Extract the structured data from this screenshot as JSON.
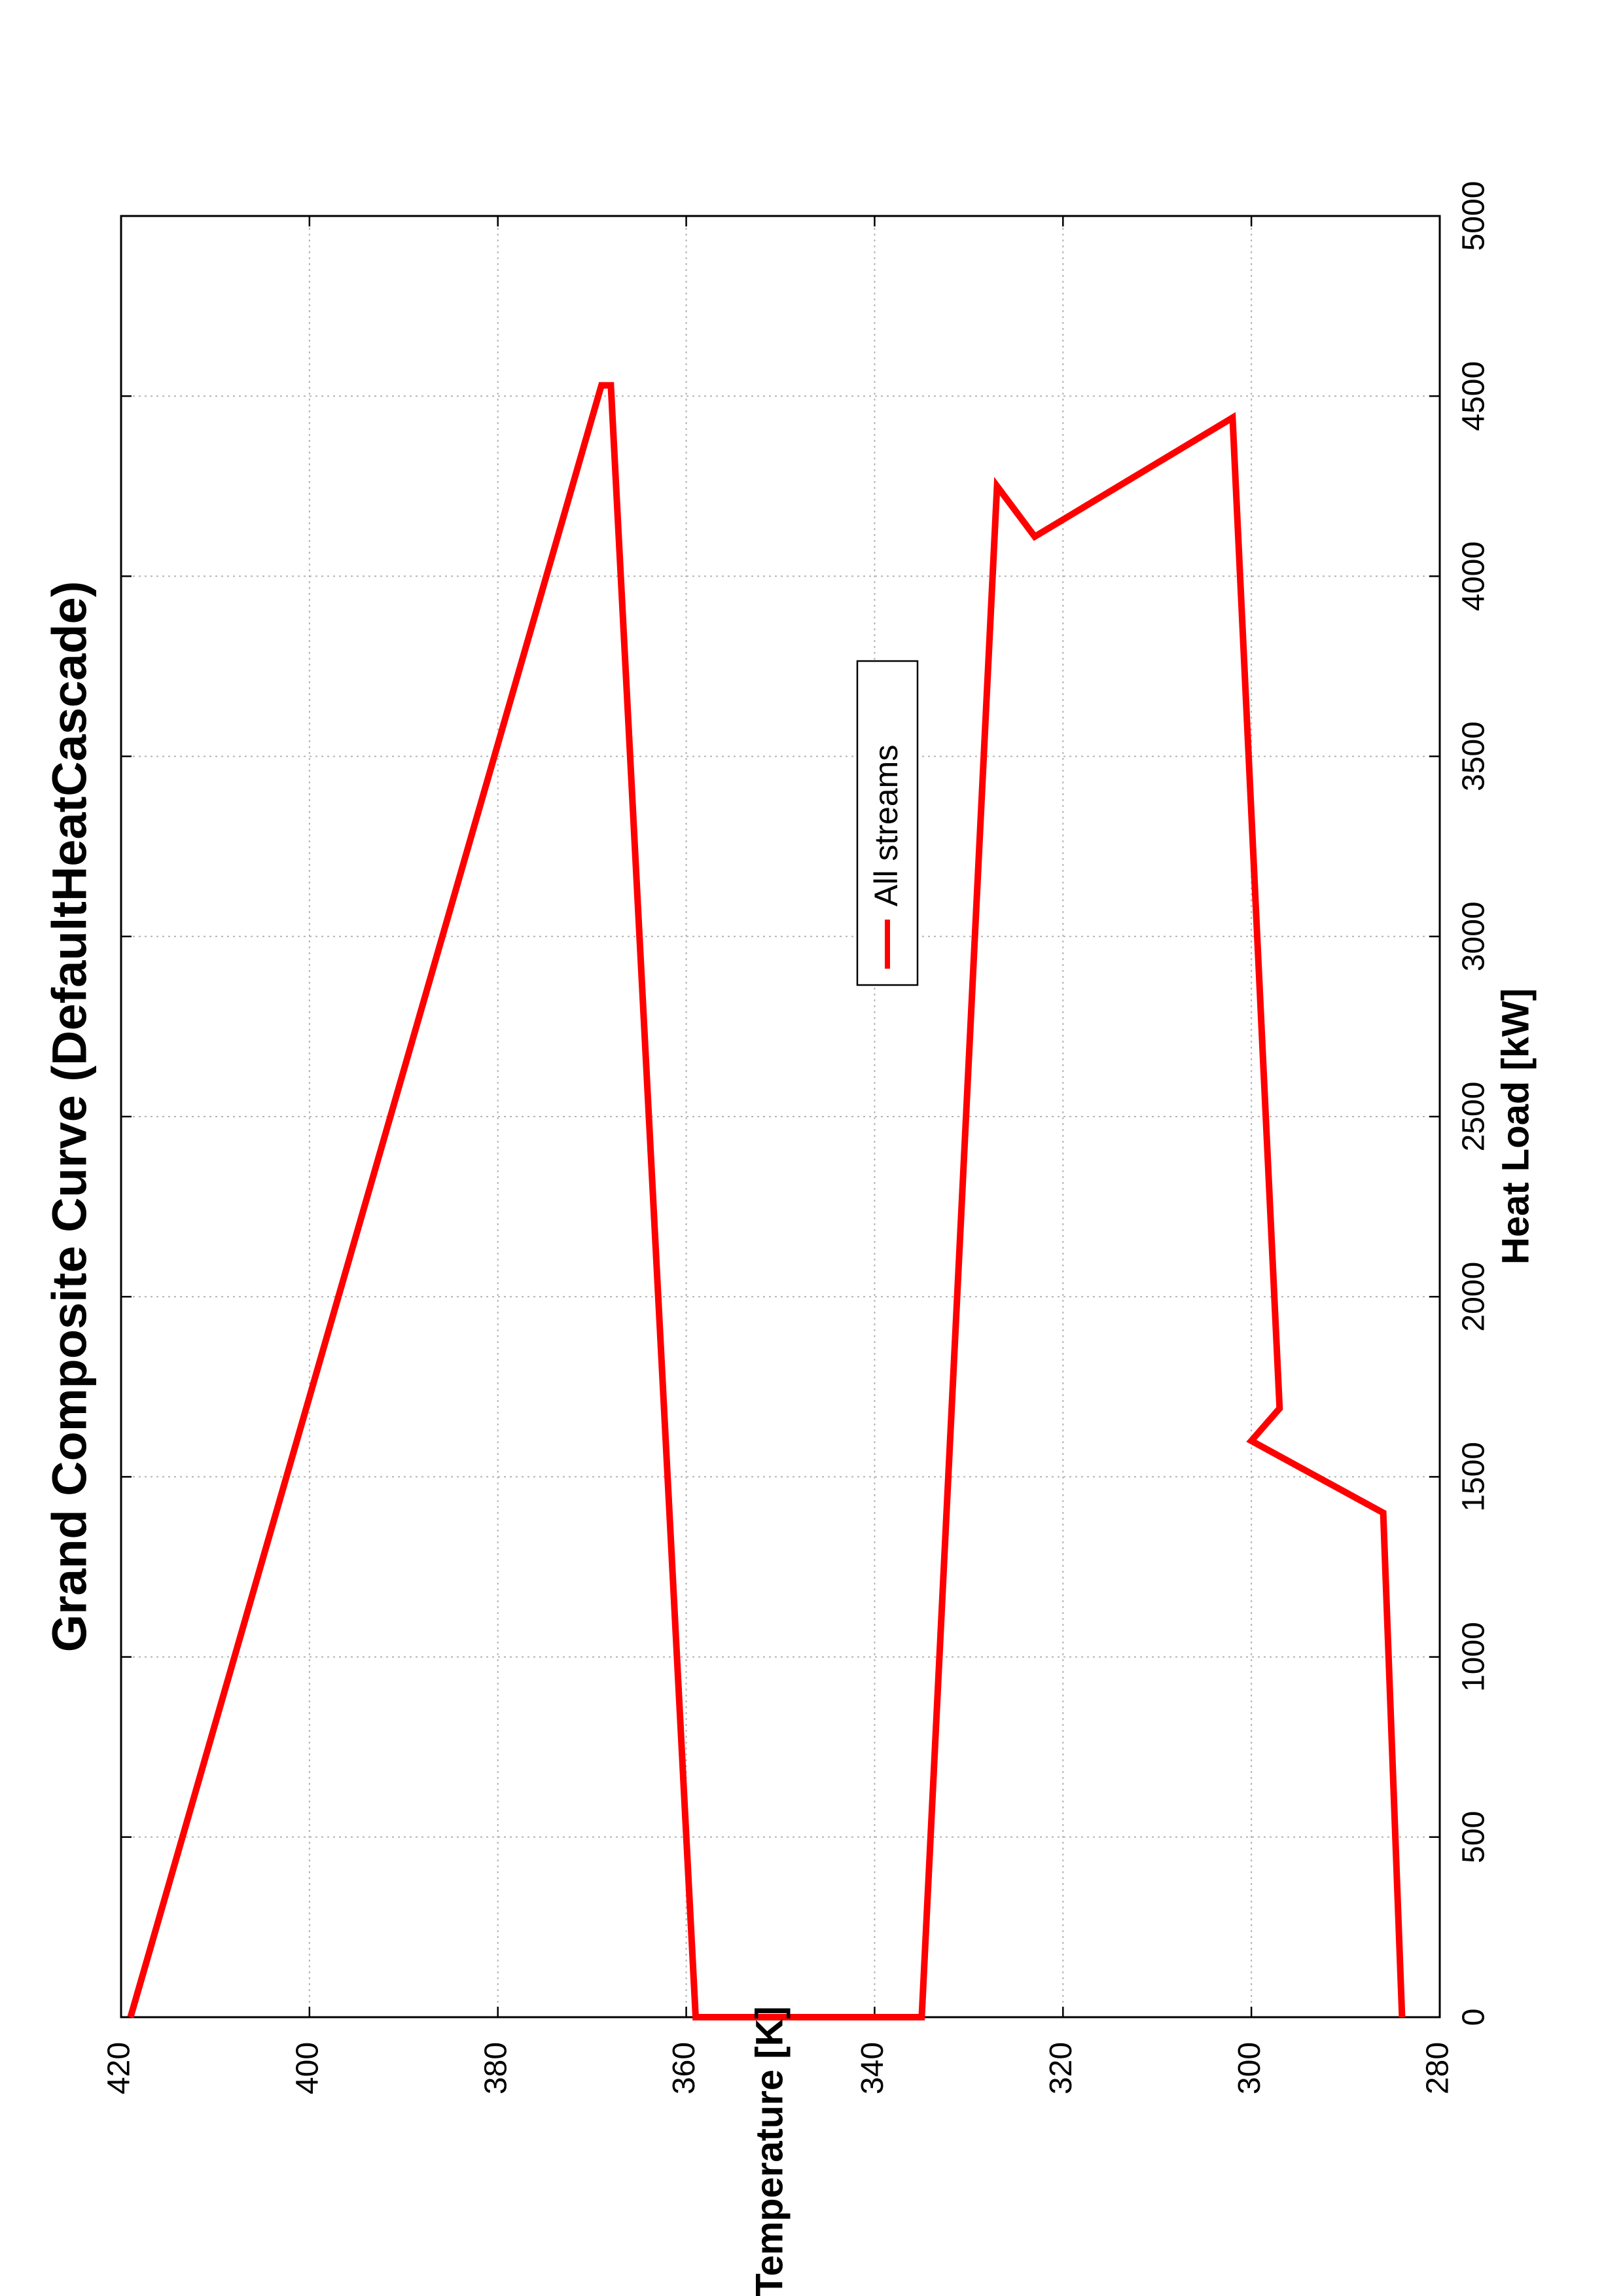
{
  "chart_data": {
    "type": "line",
    "title": "Grand Composite Curve (DefaultHeatCascade)",
    "xlabel": "Heat Load [kW]",
    "ylabel": "Temperature [K]",
    "xlim": [
      0,
      5000
    ],
    "ylim": [
      280,
      420
    ],
    "x_ticks": [
      0,
      500,
      1000,
      1500,
      2000,
      2500,
      3000,
      3500,
      4000,
      4500,
      5000
    ],
    "y_ticks": [
      280,
      300,
      320,
      340,
      360,
      380,
      400,
      420
    ],
    "grid": true,
    "orientation": "rotated-90-ccw",
    "legend_position": "inside, upper-middle",
    "series": [
      {
        "name": "All streams",
        "color": "#ff0000",
        "points": [
          {
            "x": 0,
            "y": 284
          },
          {
            "x": 1400,
            "y": 286
          },
          {
            "x": 1600,
            "y": 300
          },
          {
            "x": 1690,
            "y": 297
          },
          {
            "x": 4440,
            "y": 302
          },
          {
            "x": 4110,
            "y": 323
          },
          {
            "x": 4250,
            "y": 327
          },
          {
            "x": 0,
            "y": 335
          },
          {
            "x": 0,
            "y": 359
          },
          {
            "x": 4530,
            "y": 368
          },
          {
            "x": 4530,
            "y": 369
          },
          {
            "x": 0,
            "y": 419
          }
        ]
      }
    ]
  }
}
